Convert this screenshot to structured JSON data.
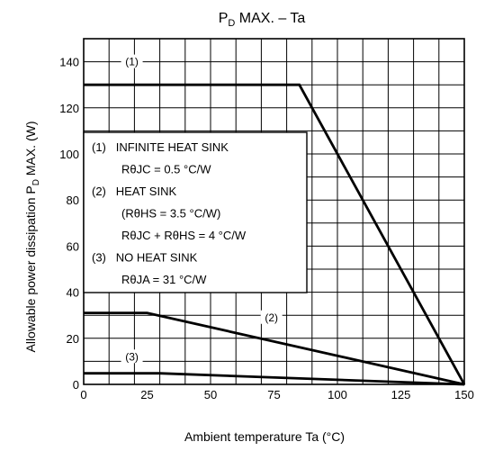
{
  "chart_data": {
    "type": "line",
    "title": {
      "main": "P",
      "sub": "D",
      "rest": " MAX. – Ta"
    },
    "xlabel": "Ambient temperature   Ta   (°C)",
    "ylabel": {
      "main": "Allowable power dissipation    P",
      "sub": "D",
      "rest": " MAX.    (W)"
    },
    "xlim": [
      0,
      150
    ],
    "ylim": [
      0,
      150
    ],
    "x_ticks": [
      0,
      25,
      50,
      75,
      100,
      125,
      150
    ],
    "y_ticks": [
      0,
      20,
      40,
      60,
      80,
      100,
      120,
      140
    ],
    "x_grid_step": 10,
    "y_grid_step": 10,
    "grid": true,
    "series": [
      {
        "name": "(1)",
        "x": [
          0,
          85,
          150
        ],
        "y": [
          130,
          130,
          0
        ],
        "label_at": [
          19,
          140
        ]
      },
      {
        "name": "(2)",
        "x": [
          0,
          25,
          150
        ],
        "y": [
          31,
          31,
          0
        ],
        "label_at": [
          74,
          29
        ]
      },
      {
        "name": "(3)",
        "x": [
          0,
          30,
          150
        ],
        "y": [
          4.8,
          4.8,
          0
        ],
        "label_at": [
          19,
          12
        ]
      }
    ],
    "legend": {
      "placement": "upper-left",
      "lines": [
        "(1)   INFINITE HEAT SINK",
        "RθJC = 0.5 °C/W",
        "(2)   HEAT SINK",
        "(RθHS = 3.5 °C/W)",
        "RθJC + RθHS = 4 °C/W",
        "(3)   NO HEAT SINK",
        "RθJA = 31 °C/W"
      ]
    }
  }
}
